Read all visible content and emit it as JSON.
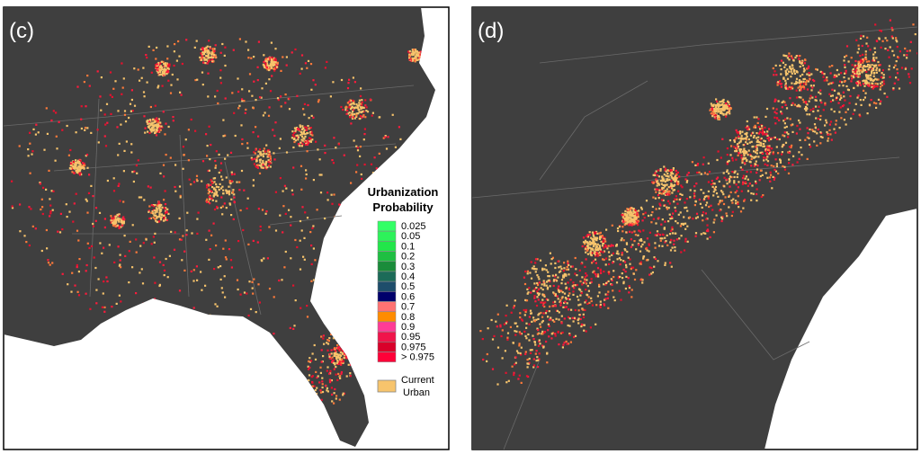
{
  "panels": [
    {
      "label": "(c)"
    },
    {
      "label": "(d)"
    }
  ],
  "legend": {
    "title": [
      "Urbanization",
      "Probability"
    ],
    "items": [
      {
        "label": "0.025",
        "color": "#33ff66"
      },
      {
        "label": "0.05",
        "color": "#2df25a"
      },
      {
        "label": "0.1",
        "color": "#22e64a"
      },
      {
        "label": "0.2",
        "color": "#1fbf42"
      },
      {
        "label": "0.3",
        "color": "#1a8c3a"
      },
      {
        "label": "0.4",
        "color": "#1c6b58"
      },
      {
        "label": "0.5",
        "color": "#1e4d6b"
      },
      {
        "label": "0.6",
        "color": "#00006b"
      },
      {
        "label": "0.7",
        "color": "#ff7272"
      },
      {
        "label": "0.8",
        "color": "#ff8c00"
      },
      {
        "label": "0.9",
        "color": "#ff3c96"
      },
      {
        "label": "0.95",
        "color": "#f0144a"
      },
      {
        "label": "0.975",
        "color": "#d9002a"
      },
      {
        "label": "> 0.975",
        "color": "#ff0038"
      }
    ],
    "current_urban": {
      "label": [
        "Current",
        "Urban"
      ],
      "color": "#f7c46c"
    }
  }
}
